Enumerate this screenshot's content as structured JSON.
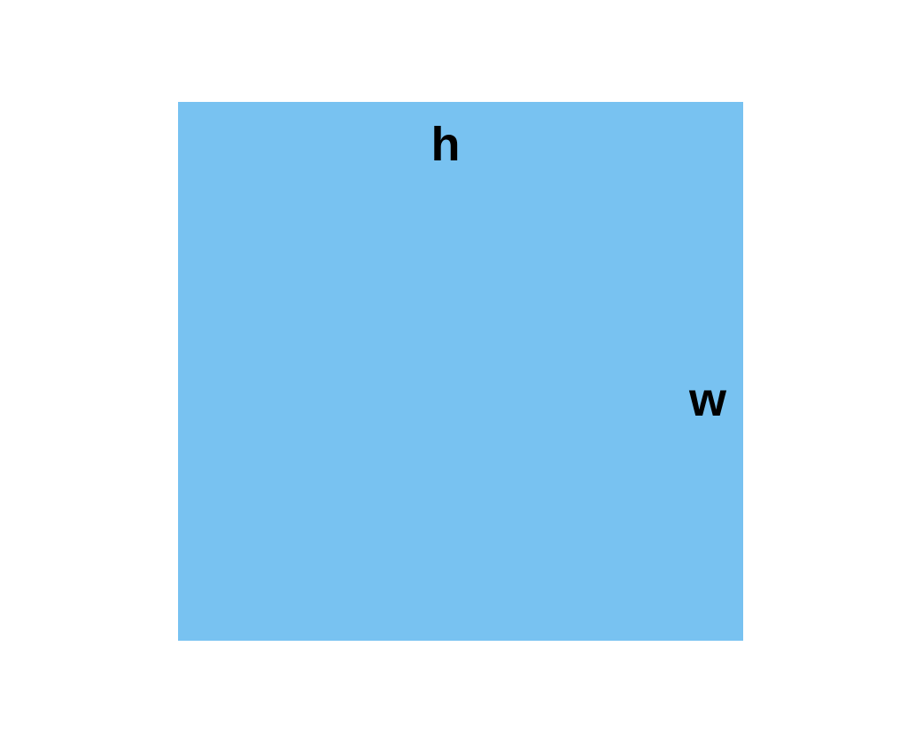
{
  "diagram": {
    "shape": "rectangle",
    "fill_color": "#78c2f1",
    "labels": {
      "top": "h",
      "right": "w"
    }
  }
}
